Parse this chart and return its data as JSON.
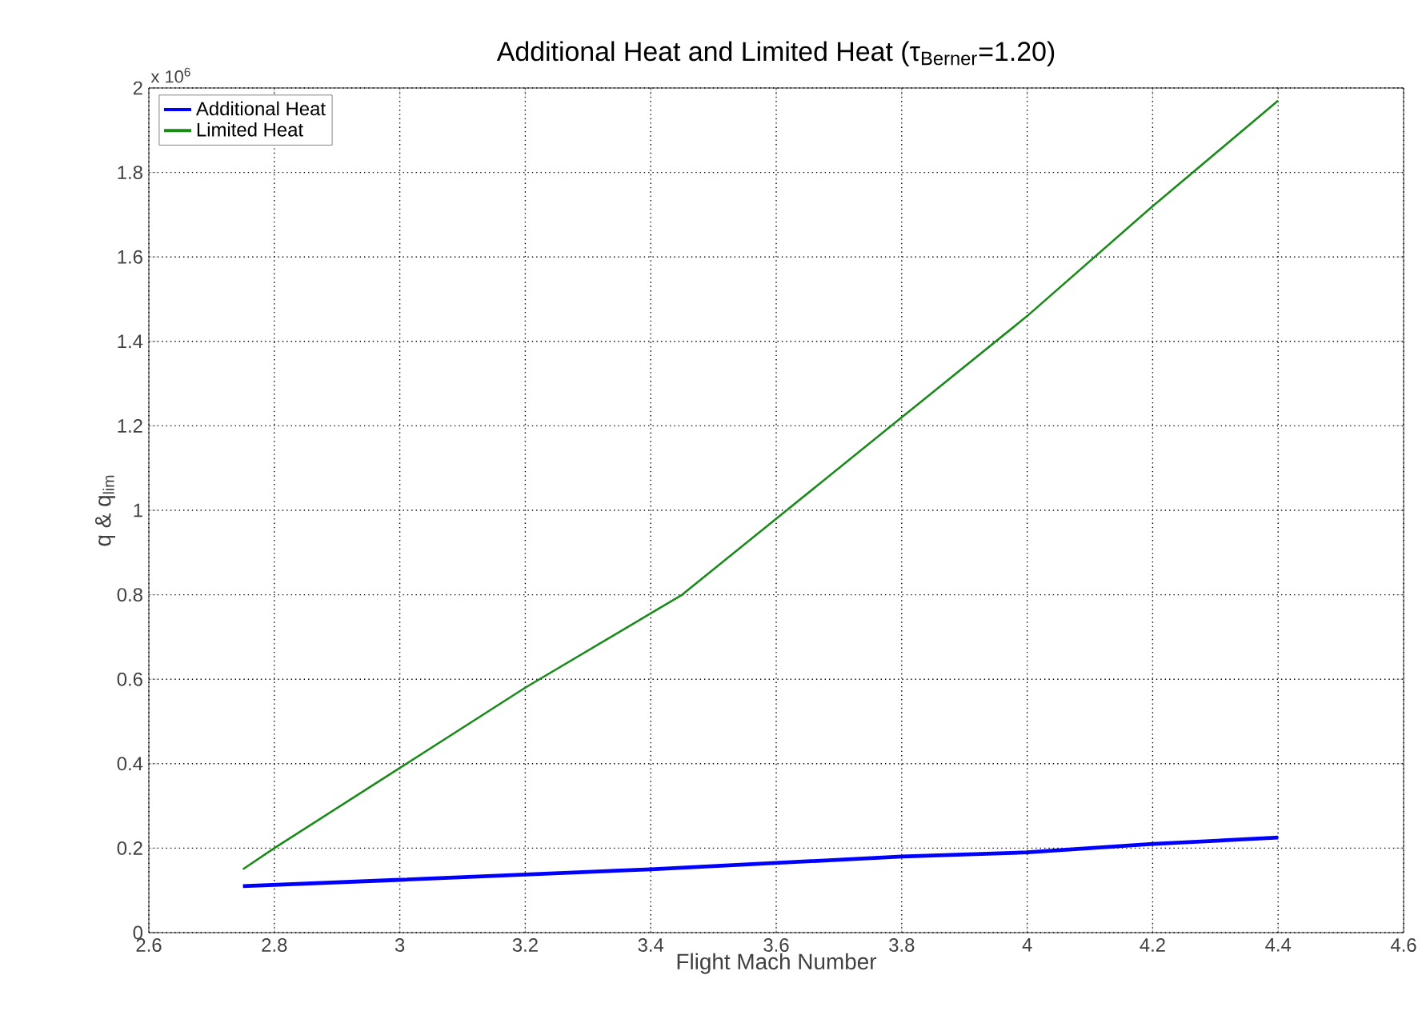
{
  "chart_data": {
    "type": "line",
    "title": "Additional Heat and Limited Heat (τ$_{Berner}$=1.20)",
    "xlabel": "Flight Mach Number",
    "ylabel": "q & q$_{lim}$",
    "annotations": [
      "x 10$^{6}$"
    ],
    "series": [
      {
        "name": "Additional Heat",
        "color": "#0000ff",
        "x": [
          2.75,
          3.0,
          3.4,
          3.8,
          4.0,
          4.2,
          4.4
        ],
        "values": [
          0.11,
          0.125,
          0.15,
          0.18,
          0.19,
          0.21,
          0.225
        ]
      },
      {
        "name": "Limited Heat",
        "color": "#1a8a1a",
        "x": [
          2.75,
          2.8,
          3.0,
          3.2,
          3.45,
          3.6,
          3.8,
          4.0,
          4.2,
          4.4
        ],
        "values": [
          0.15,
          0.2,
          0.39,
          0.58,
          0.8,
          0.98,
          1.22,
          1.46,
          1.72,
          1.97
        ]
      }
    ],
    "xlim": [
      2.6,
      4.6
    ],
    "ylim": [
      0,
      2
    ],
    "xticks": [
      2.6,
      2.8,
      3,
      3.2,
      3.4,
      3.6,
      3.8,
      4,
      4.2,
      4.4,
      4.6
    ],
    "yticks": [
      0,
      0.2,
      0.4,
      0.6,
      0.8,
      1,
      1.2,
      1.4,
      1.6,
      1.8,
      2
    ],
    "grid": true,
    "legend": "top left",
    "marker": "none",
    "line_style": "solid"
  }
}
